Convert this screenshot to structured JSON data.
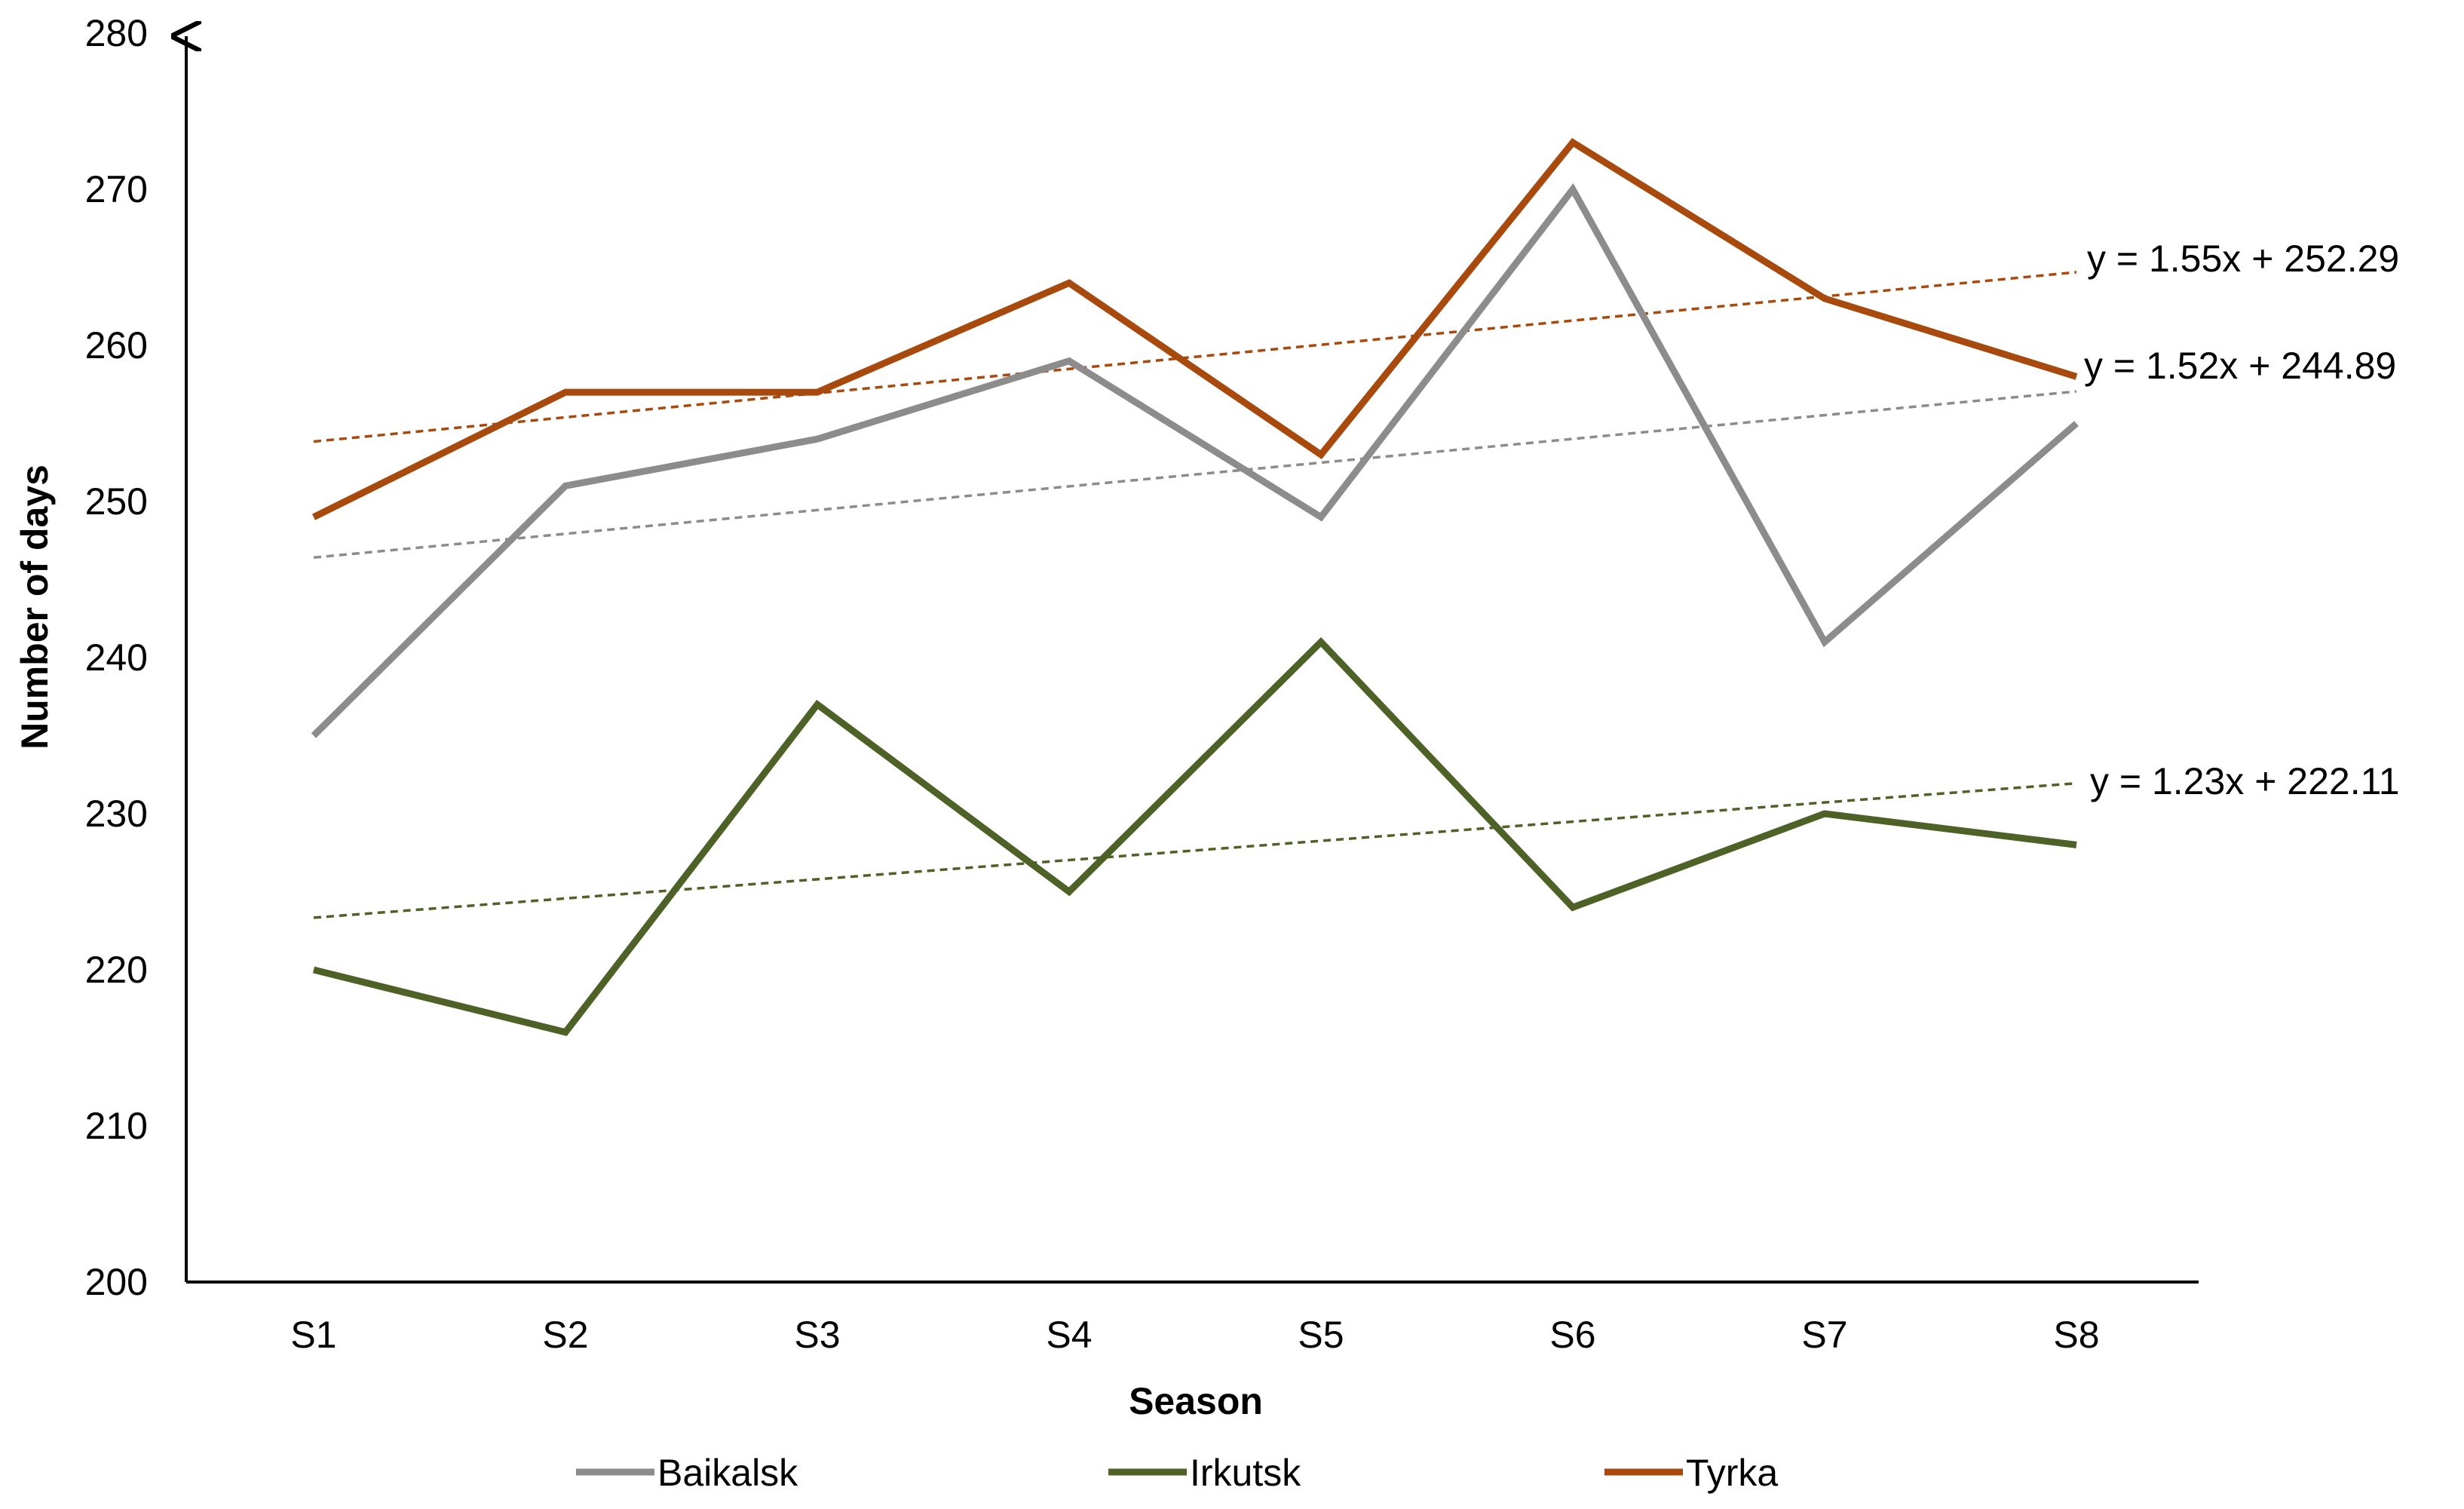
{
  "chart_data": {
    "type": "line",
    "title": "",
    "xlabel": "Season",
    "ylabel": "Number of days",
    "categories": [
      "S1",
      "S2",
      "S3",
      "S4",
      "S5",
      "S6",
      "S7",
      "S8"
    ],
    "ylim": [
      200,
      280
    ],
    "yticks": [
      "200",
      "210",
      "220",
      "230",
      "240",
      "250",
      "260",
      "270",
      "280"
    ],
    "grid": false,
    "legend_position": "bottom",
    "series": [
      {
        "name": "Baikalsk",
        "color": "#8c8c8c",
        "values": [
          235,
          251,
          254,
          259,
          249,
          270,
          241,
          255
        ],
        "trendline": {
          "slope": 1.52,
          "intercept": 244.89,
          "label": "y = 1.52x + 244.89"
        }
      },
      {
        "name": "Irkutsk",
        "color": "#4e6126",
        "values": [
          220,
          216,
          237,
          225,
          241,
          224,
          230,
          228
        ],
        "trendline": {
          "slope": 1.23,
          "intercept": 222.11,
          "label": "y = 1.23x + 222.11"
        }
      },
      {
        "name": "Tyrka",
        "color": "#a8490d",
        "values": [
          249,
          257,
          257,
          264,
          253,
          273,
          263,
          258
        ],
        "trendline": {
          "slope": 1.55,
          "intercept": 252.29,
          "label": "y = 1.55x + 252.29"
        }
      }
    ]
  }
}
